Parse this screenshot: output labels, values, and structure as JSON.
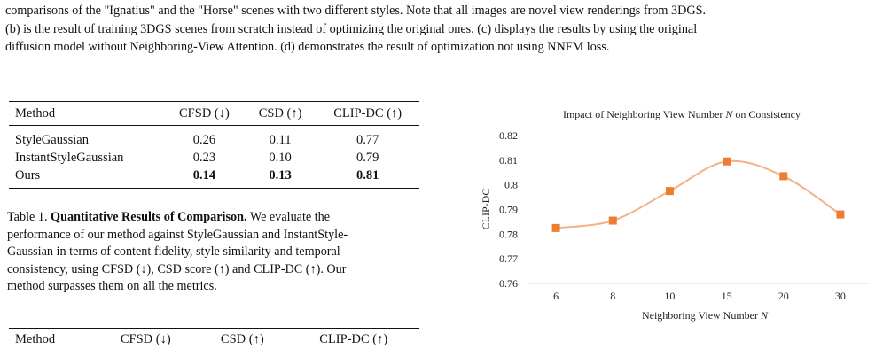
{
  "top_paragraph": {
    "lines": [
      "comparisons of the \"Ignatius\" and the \"Horse\" scenes with two different styles. Note that all images are novel view renderings from 3DGS.",
      "(b) is the result of training 3DGS scenes from scratch instead of optimizing the original ones. (c) displays the results by using the original",
      "diffusion model without Neighboring-View Attention. (d) demonstrates the result of optimization not using NNFM loss."
    ]
  },
  "table1": {
    "headers": [
      "Method",
      "CFSD (↓)",
      "CSD (↑)",
      "CLIP-DC (↑)"
    ],
    "rows": [
      {
        "method": "StyleGaussian",
        "cfsd": "0.26",
        "csd": "0.11",
        "clipdc": "0.77"
      },
      {
        "method": "InstantStyleGaussian",
        "cfsd": "0.23",
        "csd": "0.10",
        "clipdc": "0.79"
      },
      {
        "method": "Ours",
        "cfsd": "0.14",
        "csd": "0.13",
        "clipdc": "0.81"
      }
    ]
  },
  "caption": {
    "label": "Table 1.",
    "bold_title": "Quantitative Results of Comparison.",
    "lines": [
      " We evaluate the",
      "performance of our method against StyleGaussian and InstantStyle-",
      "Gaussian in terms of content fidelity, style similarity and temporal",
      "consistency, using CFSD (↓), CSD score (↑) and CLIP-DC (↑). Our",
      "method surpasses them on all the metrics."
    ]
  },
  "table2": {
    "headers": [
      "Method",
      "CFSD (↓)",
      "CSD (↑)",
      "CLIP-DC (↑)"
    ]
  },
  "chart_data": {
    "type": "line",
    "title_prefix": "Impact of Neighboring View Number ",
    "title_var": "N",
    "title_suffix": " on Consistency",
    "xlabel_prefix": "Neighboring View Number ",
    "xlabel_var": "N",
    "ylabel": "CLIP-DC",
    "categories": [
      "6",
      "8",
      "10",
      "15",
      "20",
      "30"
    ],
    "values": [
      0.7825,
      0.7855,
      0.7975,
      0.8095,
      0.8035,
      0.788
    ],
    "ylim": [
      0.76,
      0.82
    ],
    "yticks": [
      "0.76",
      "0.77",
      "0.78",
      "0.79",
      "0.8",
      "0.81",
      "0.82"
    ],
    "grid": false,
    "smooth": true,
    "line_color": "#f4b183",
    "marker_color": "#ed7d31"
  }
}
